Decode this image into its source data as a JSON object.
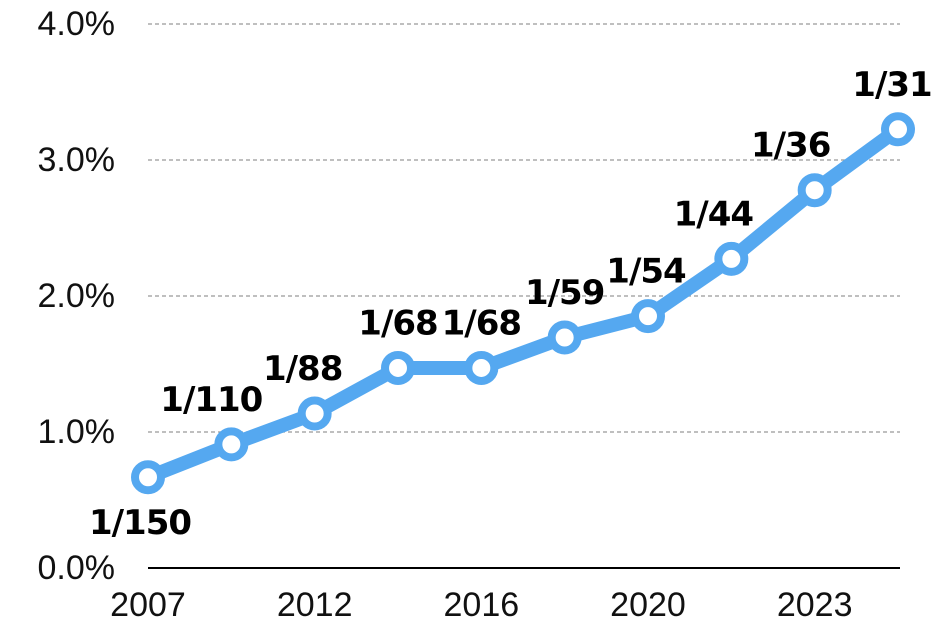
{
  "chart_data": {
    "type": "line",
    "categories": [
      "2007",
      null,
      "2012",
      null,
      "2016",
      null,
      "2020",
      null,
      "2023",
      null
    ],
    "series": [
      {
        "color": "#55a8f0",
        "values": [
          0.667,
          0.909,
          1.136,
          1.471,
          1.471,
          1.695,
          1.852,
          2.273,
          2.778,
          3.226
        ],
        "value_labels": [
          "1/150",
          "1/110",
          "1/88",
          "1/68",
          "1/68",
          "1/59",
          "1/54",
          "1/44",
          "1/36",
          "1/31"
        ]
      }
    ],
    "ylim": [
      0,
      4
    ],
    "yticks": [
      {
        "value": 0,
        "label": "0.0%"
      },
      {
        "value": 1,
        "label": "1.0%"
      },
      {
        "value": 2,
        "label": "2.0%"
      },
      {
        "value": 3,
        "label": "3.0%"
      },
      {
        "value": 4,
        "label": "4.0%"
      }
    ],
    "grid": true
  }
}
